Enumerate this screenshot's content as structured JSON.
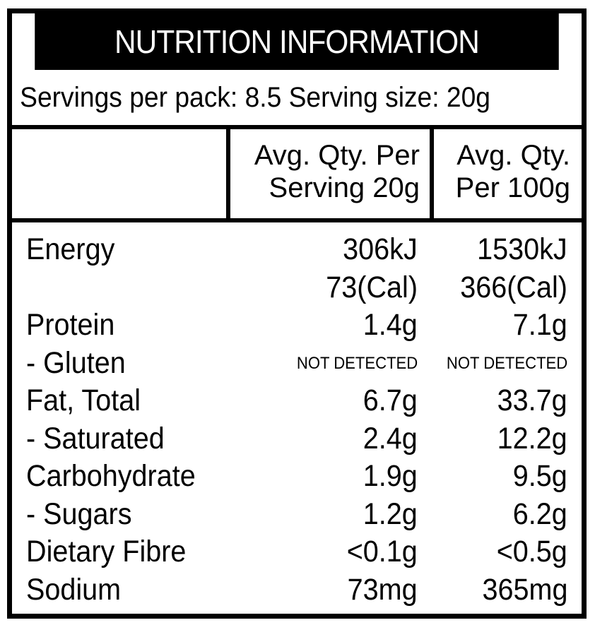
{
  "panel": {
    "title": "NUTRITION INFORMATION",
    "servings_line": "Servings per pack: 8.5 Serving size: 20g"
  },
  "columns": {
    "serving_line1": "Avg. Qty. Per",
    "serving_line2": "Serving 20g",
    "per100_line1": "Avg. Qty.",
    "per100_line2": "Per 100g"
  },
  "rows": [
    {
      "name": "Energy",
      "serving": "306kJ",
      "per100": "1530kJ"
    },
    {
      "name": "",
      "serving": "73(Cal)",
      "per100": "366(Cal)"
    },
    {
      "name": "Protein",
      "serving": "1.4g",
      "per100": "7.1g"
    },
    {
      "name": "- Gluten",
      "serving": "NOT DETECTED",
      "per100": "NOT DETECTED"
    },
    {
      "name": "Fat, Total",
      "serving": "6.7g",
      "per100": "33.7g"
    },
    {
      "name": "- Saturated",
      "serving": "2.4g",
      "per100": "12.2g"
    },
    {
      "name": "Carbohydrate",
      "serving": "1.9g",
      "per100": "9.5g"
    },
    {
      "name": "- Sugars",
      "serving": "1.2g",
      "per100": "6.2g"
    },
    {
      "name": "Dietary Fibre",
      "serving": "<0.1g",
      "per100": "<0.5g"
    },
    {
      "name": "Sodium",
      "serving": "73mg",
      "per100": "365mg"
    }
  ],
  "colors": {
    "ink": "#000000",
    "background": "#ffffff"
  }
}
